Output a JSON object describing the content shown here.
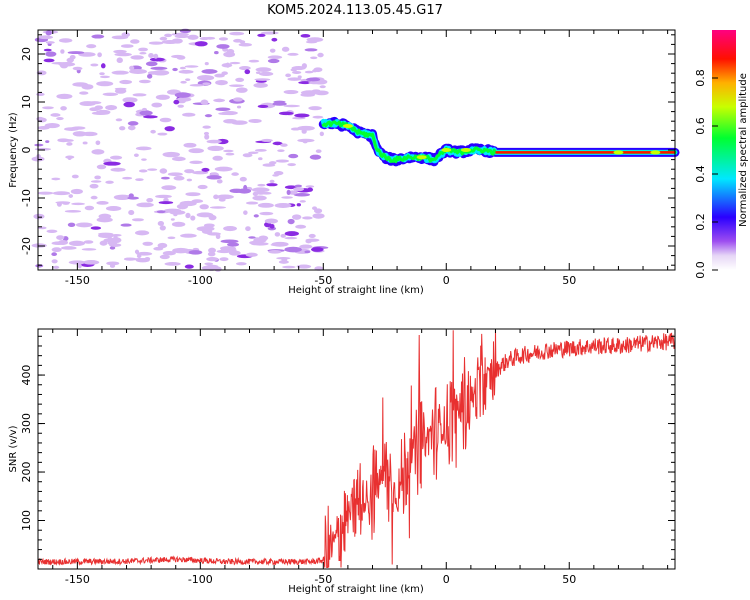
{
  "title": "KOM5.2024.113.05.45.G17",
  "chart_data": [
    {
      "type": "heatmap",
      "xlabel": "Height of straight line (km)",
      "ylabel": "Frequency (Hz)",
      "xlim": [
        -166,
        93
      ],
      "ylim": [
        -25,
        25
      ],
      "xticks": [
        -150,
        -100,
        -50,
        0,
        50
      ],
      "yticks": [
        -20,
        -10,
        0,
        10,
        20
      ],
      "colorbar": {
        "label": "Normalized spectral amplitude",
        "range": [
          0,
          1
        ],
        "ticks": [
          0.0,
          0.2,
          0.4,
          0.6,
          0.8
        ],
        "colormap": "rainbow (white-purple-blue-cyan-green-yellow-red-magenta)"
      },
      "features": {
        "noise_region_x": [
          -166,
          -50
        ],
        "signal_track": {
          "x": [
            -50,
            -45,
            -40,
            -35,
            -30,
            -28,
            -25,
            -22,
            -20,
            -15,
            -10,
            -5,
            0,
            5,
            10,
            15,
            20,
            30,
            50,
            70,
            80,
            93
          ],
          "freq": [
            5.5,
            5.5,
            5,
            3.5,
            3,
            0,
            -1.5,
            -2,
            -2,
            -1.5,
            -1.5,
            -2,
            0,
            -0.5,
            0,
            0,
            -0.5,
            -0.5,
            -0.5,
            -0.5,
            -0.5,
            -0.5
          ]
        }
      }
    },
    {
      "type": "line",
      "xlabel": "Height of straight line (km)",
      "ylabel": "SNR (v/v)",
      "xlim": [
        -166,
        93
      ],
      "ylim": [
        0,
        495
      ],
      "xticks": [
        -150,
        -100,
        -50,
        0,
        50
      ],
      "yticks": [
        100,
        200,
        300,
        400
      ],
      "line_color": "#e83030",
      "series": [
        {
          "x": [
            -166,
            -150,
            -130,
            -110,
            -90,
            -70,
            -55,
            -50,
            -45,
            -40,
            -35,
            -30,
            -25,
            -20,
            -15,
            -10,
            -5,
            0,
            5,
            10,
            15,
            20,
            25,
            30,
            40,
            50,
            60,
            70,
            80,
            93
          ],
          "values": [
            15,
            15,
            16,
            20,
            15,
            15,
            15,
            18,
            60,
            110,
            140,
            160,
            200,
            150,
            230,
            260,
            280,
            300,
            330,
            350,
            380,
            410,
            430,
            440,
            450,
            455,
            460,
            460,
            465,
            470
          ]
        }
      ]
    }
  ]
}
